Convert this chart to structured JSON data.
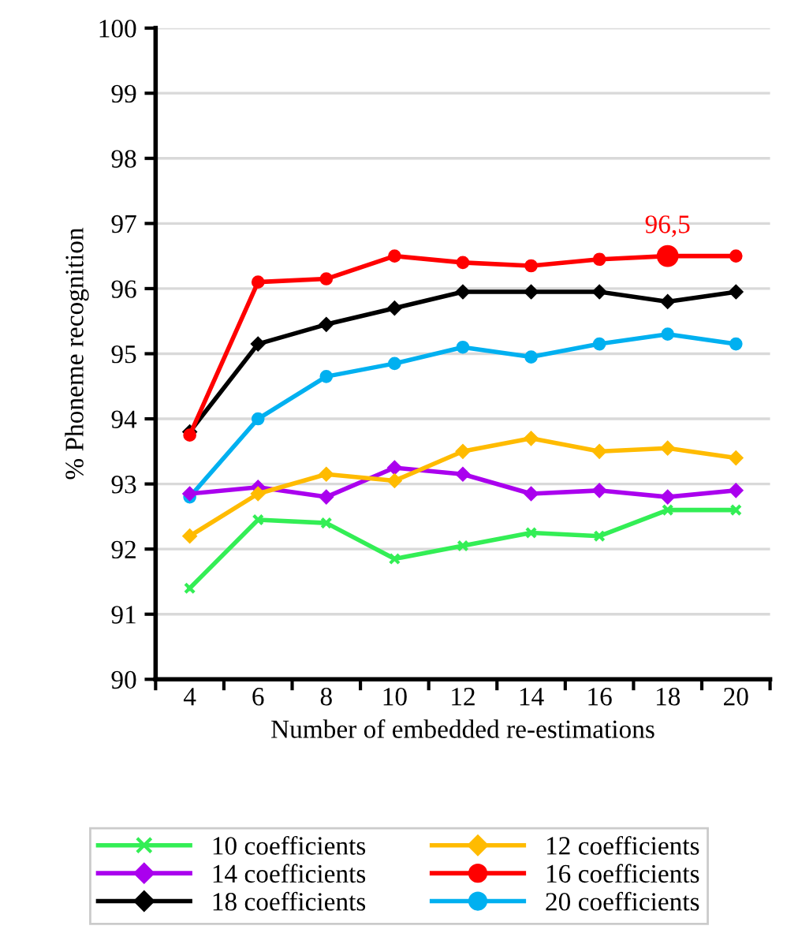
{
  "chart_data": {
    "type": "line",
    "xlabel": "Number of embedded re-estimations",
    "ylabel": "% Phoneme recognition",
    "categories": [
      "4",
      "6",
      "8",
      "10",
      "12",
      "14",
      "16",
      "18",
      "20"
    ],
    "ylim": [
      90,
      100
    ],
    "yticks": [
      90,
      91,
      92,
      93,
      94,
      95,
      96,
      97,
      98,
      99,
      100
    ],
    "grid": "y",
    "legend": "bottom",
    "series": [
      {
        "name": "10 coefficients",
        "color": "#33ee55",
        "marker": "cross",
        "values": [
          91.4,
          92.45,
          92.4,
          91.85,
          92.05,
          92.25,
          92.2,
          92.6,
          92.6
        ]
      },
      {
        "name": "12 coefficients",
        "color": "#ffbb00",
        "marker": "diamond",
        "values": [
          92.2,
          92.85,
          93.15,
          93.05,
          93.5,
          93.7,
          93.5,
          93.55,
          93.4
        ]
      },
      {
        "name": "14 coefficients",
        "color": "#aa00ee",
        "marker": "diamond",
        "values": [
          92.85,
          92.95,
          92.8,
          93.25,
          93.15,
          92.85,
          92.9,
          92.8,
          92.9
        ]
      },
      {
        "name": "16 coefficients",
        "color": "#ff0000",
        "marker": "circle",
        "values": [
          93.75,
          96.1,
          96.15,
          96.5,
          96.4,
          96.35,
          96.45,
          96.5,
          96.5
        ]
      },
      {
        "name": "18 coefficients",
        "color": "#000000",
        "marker": "diamond",
        "values": [
          93.8,
          95.15,
          95.45,
          95.7,
          95.95,
          95.95,
          95.95,
          95.8,
          95.95
        ]
      },
      {
        "name": "20 coefficients",
        "color": "#00b0f0",
        "marker": "circle",
        "values": [
          92.8,
          94.0,
          94.65,
          94.85,
          95.1,
          94.95,
          95.15,
          95.3,
          95.15
        ]
      }
    ],
    "annotations": [
      {
        "text": "96,5",
        "x": "18",
        "y": 96.5
      }
    ]
  }
}
